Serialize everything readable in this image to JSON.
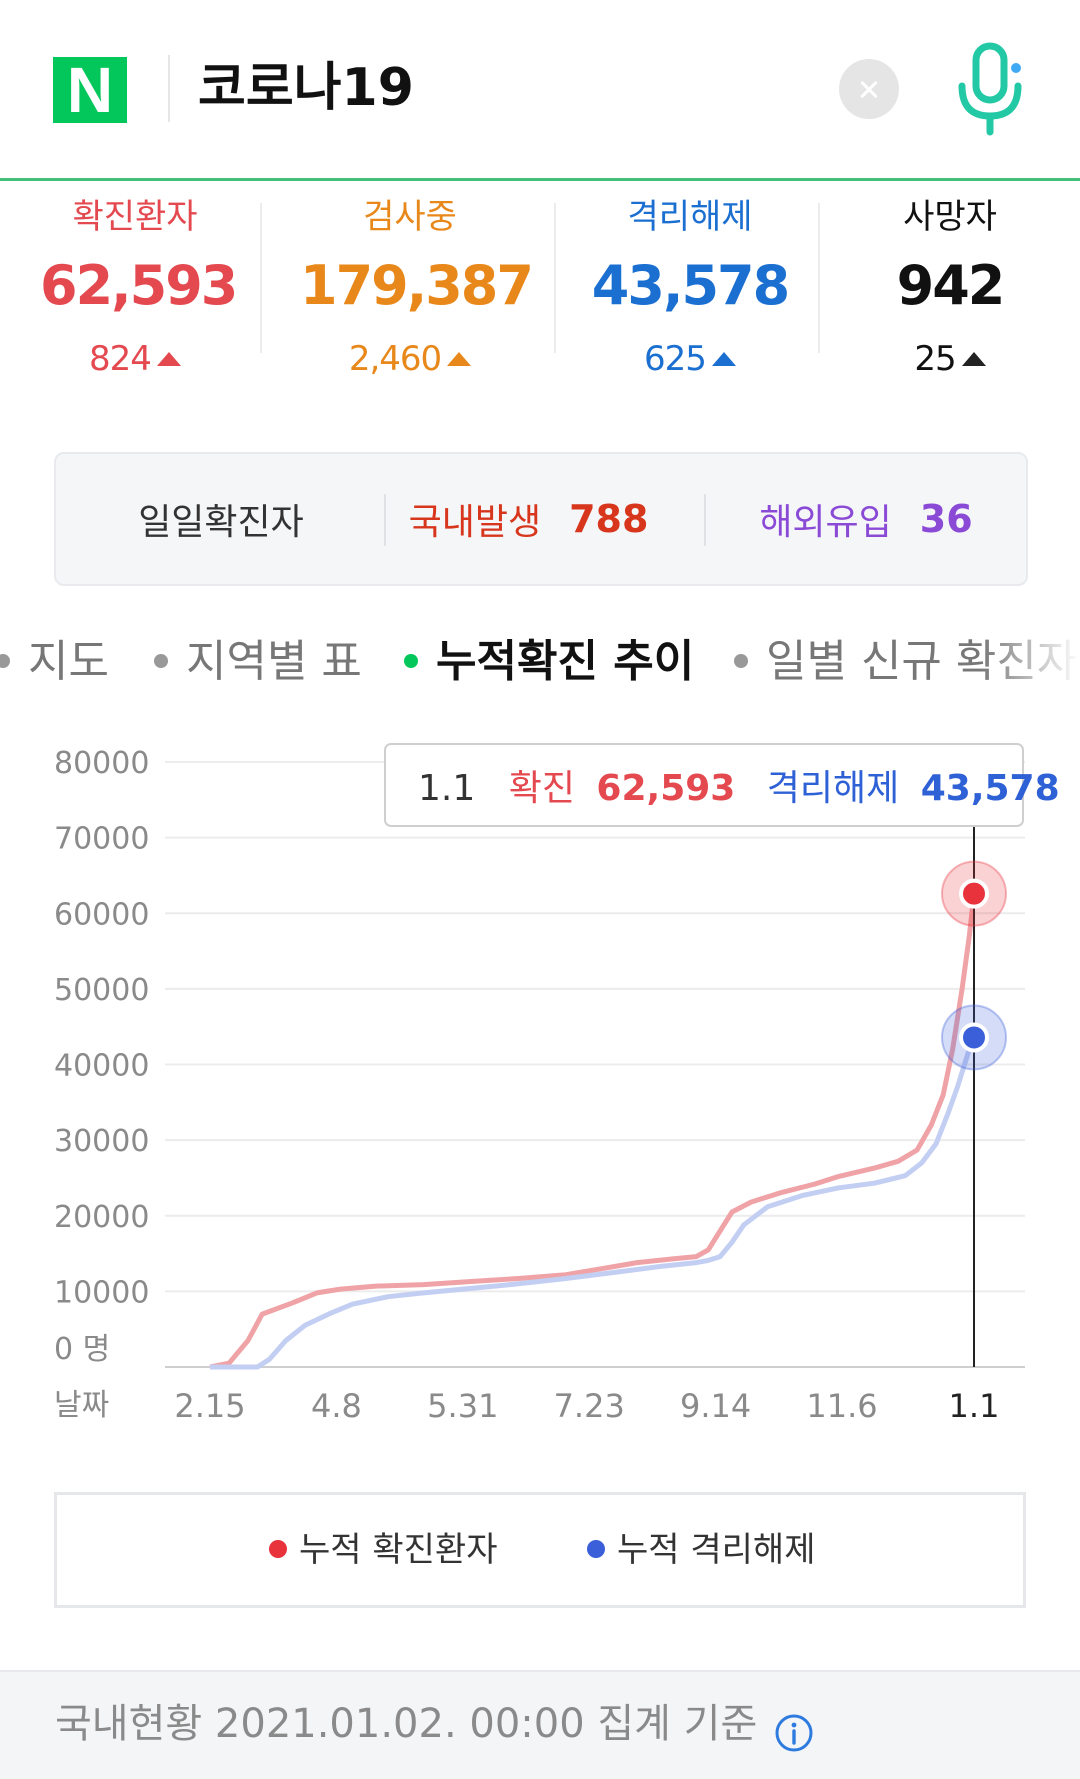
{
  "header": {
    "logo_text": "N",
    "query": "코로나19",
    "clear_icon": "close-icon",
    "mic_icon": "microphone-icon"
  },
  "colors": {
    "confirmed": "#e4494f",
    "testing": "#e8881a",
    "released": "#1b6fd1",
    "deaths": "#111111",
    "brand": "#03c75a",
    "domestic": "#d7361d",
    "overseas": "#8a4ad6"
  },
  "stats": [
    {
      "label": "확진환자",
      "value": "62,593",
      "change": "824"
    },
    {
      "label": "검사중",
      "value": "179,387",
      "change": "2,460"
    },
    {
      "label": "격리해제",
      "value": "43,578",
      "change": "625"
    },
    {
      "label": "사망자",
      "value": "942",
      "change": "25"
    }
  ],
  "daily": {
    "label": "일일확진자",
    "domestic_label": "국내발생",
    "domestic_value": "788",
    "overseas_label": "해외유입",
    "overseas_value": "36"
  },
  "tabs": [
    {
      "label": "지도",
      "active": false
    },
    {
      "label": "지역별 표",
      "active": false
    },
    {
      "label": "누적확진 추이",
      "active": true
    },
    {
      "label": "일별 신규 확진자",
      "active": false
    }
  ],
  "tooltip": {
    "date": "1.1",
    "confirmed_label": "확진",
    "confirmed_value": "62,593",
    "released_label": "격리해제",
    "released_value": "43,578"
  },
  "chart_data": {
    "type": "line",
    "x_axis_title": "날짜",
    "y_unit_label": "0 명",
    "x_tick_labels": [
      "2.15",
      "4.8",
      "5.31",
      "7.23",
      "9.14",
      "11.6",
      "1.1"
    ],
    "y_ticks": [
      80000,
      70000,
      60000,
      50000,
      40000,
      30000,
      20000,
      10000
    ],
    "ylim": [
      0,
      80000
    ],
    "x_index_range": [
      0,
      322
    ],
    "grid": true,
    "series": [
      {
        "name": "누적 확진환자",
        "color": "#f0a3a6",
        "points": [
          [
            0,
            0
          ],
          [
            8,
            500
          ],
          [
            16,
            3500
          ],
          [
            22,
            7000
          ],
          [
            35,
            8500
          ],
          [
            45,
            9800
          ],
          [
            55,
            10300
          ],
          [
            70,
            10700
          ],
          [
            90,
            10900
          ],
          [
            110,
            11300
          ],
          [
            130,
            11700
          ],
          [
            150,
            12200
          ],
          [
            165,
            13000
          ],
          [
            180,
            13800
          ],
          [
            195,
            14300
          ],
          [
            205,
            14600
          ],
          [
            210,
            15500
          ],
          [
            215,
            18000
          ],
          [
            220,
            20500
          ],
          [
            228,
            21800
          ],
          [
            240,
            23000
          ],
          [
            255,
            24200
          ],
          [
            265,
            25200
          ],
          [
            280,
            26300
          ],
          [
            290,
            27200
          ],
          [
            298,
            28700
          ],
          [
            304,
            32000
          ],
          [
            309,
            36000
          ],
          [
            313,
            42000
          ],
          [
            317,
            50000
          ],
          [
            320,
            57000
          ],
          [
            322,
            62593
          ]
        ]
      },
      {
        "name": "누적 격리해제",
        "color": "#c3cef3",
        "points": [
          [
            0,
            0
          ],
          [
            20,
            0
          ],
          [
            25,
            1000
          ],
          [
            32,
            3500
          ],
          [
            40,
            5500
          ],
          [
            50,
            7000
          ],
          [
            60,
            8300
          ],
          [
            75,
            9300
          ],
          [
            90,
            9800
          ],
          [
            110,
            10400
          ],
          [
            130,
            11000
          ],
          [
            150,
            11700
          ],
          [
            170,
            12500
          ],
          [
            190,
            13300
          ],
          [
            205,
            13800
          ],
          [
            210,
            14100
          ],
          [
            215,
            14600
          ],
          [
            220,
            16500
          ],
          [
            225,
            18800
          ],
          [
            235,
            21200
          ],
          [
            250,
            22700
          ],
          [
            265,
            23700
          ],
          [
            280,
            24300
          ],
          [
            293,
            25300
          ],
          [
            300,
            27000
          ],
          [
            306,
            29500
          ],
          [
            311,
            33500
          ],
          [
            315,
            37000
          ],
          [
            318,
            40000
          ],
          [
            320,
            42000
          ],
          [
            322,
            43578
          ]
        ]
      }
    ],
    "highlight": {
      "x_label": "1.1",
      "confirmed": 62593,
      "released": 43578
    }
  },
  "legend": [
    {
      "label": "누적 확진환자",
      "color": "#e8323c"
    },
    {
      "label": "누적 격리해제",
      "color": "#3a5fd9"
    }
  ],
  "footer": {
    "text": "국내현황 2021.01.02. 00:00 집계 기준",
    "info_icon": "info-icon"
  }
}
